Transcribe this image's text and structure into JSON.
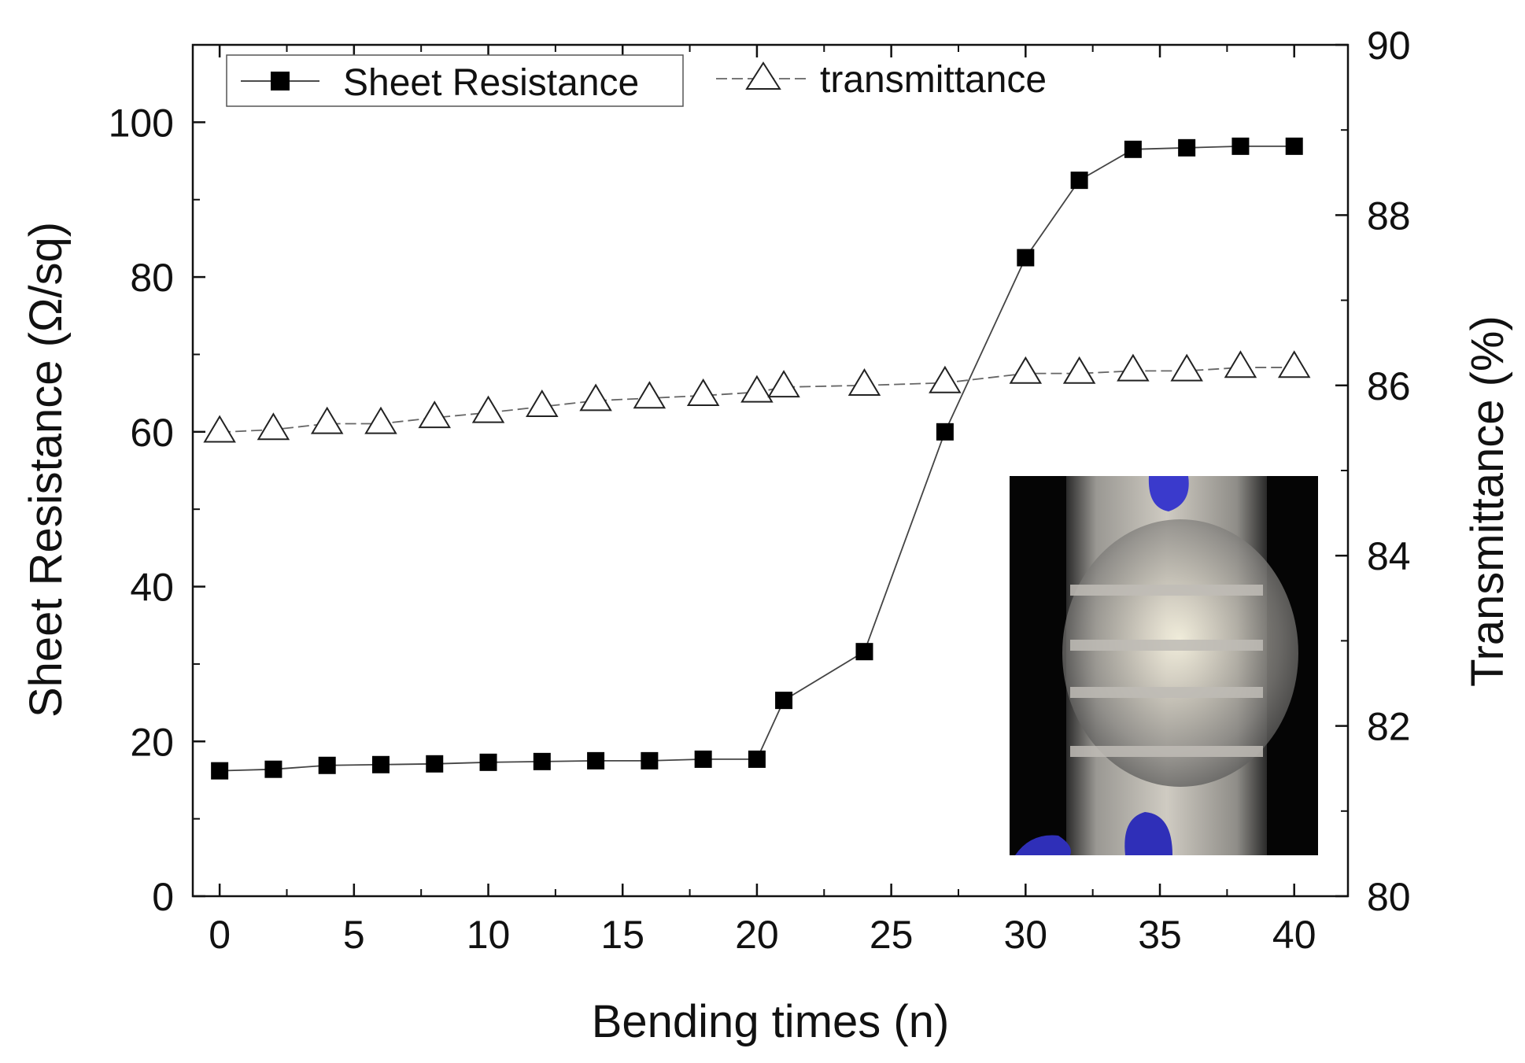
{
  "chart_data": {
    "type": "line",
    "title": "",
    "xlabel": "Bending times (n)",
    "ylabel_left": "Sheet Resistance (Ω/sq)",
    "ylabel_right": "Transmittance (%)",
    "xlim": [
      -1,
      42
    ],
    "ylim_left": [
      0,
      110
    ],
    "ylim_right": [
      80,
      90
    ],
    "x_ticks": [
      "0",
      "5",
      "10",
      "15",
      "20",
      "25",
      "30",
      "35",
      "40"
    ],
    "y_left_ticks": [
      "0",
      "20",
      "40",
      "60",
      "80",
      "100"
    ],
    "y_right_ticks": [
      "80",
      "82",
      "84",
      "86",
      "88",
      "90"
    ],
    "grid": false,
    "legend_position": "top-left",
    "series": [
      {
        "name": "Sheet Resistance",
        "axis": "left",
        "marker": "filled-square",
        "color": "#000000",
        "x": [
          0,
          2,
          4,
          6,
          8,
          10,
          12,
          14,
          16,
          18,
          20,
          21,
          24,
          27,
          30,
          32,
          34,
          36,
          38,
          40
        ],
        "y": [
          16.2,
          16.4,
          16.9,
          17.0,
          17.1,
          17.3,
          17.4,
          17.5,
          17.5,
          17.7,
          17.7,
          25.3,
          31.6,
          60.0,
          82.5,
          92.5,
          96.5,
          96.7,
          96.9,
          96.9
        ]
      },
      {
        "name": "transmittance",
        "axis": "right",
        "marker": "open-triangle",
        "color": "#000000",
        "x": [
          0,
          2,
          4,
          6,
          8,
          10,
          12,
          14,
          16,
          18,
          20,
          21,
          24,
          27,
          30,
          32,
          34,
          36,
          38,
          40
        ],
        "y": [
          85.45,
          85.48,
          85.55,
          85.55,
          85.62,
          85.68,
          85.75,
          85.82,
          85.85,
          85.88,
          85.92,
          85.98,
          86.0,
          86.03,
          86.14,
          86.14,
          86.17,
          86.17,
          86.21,
          86.21
        ]
      }
    ],
    "inset": {
      "description_icon": "bent-film-photo",
      "background": "#000000"
    }
  }
}
